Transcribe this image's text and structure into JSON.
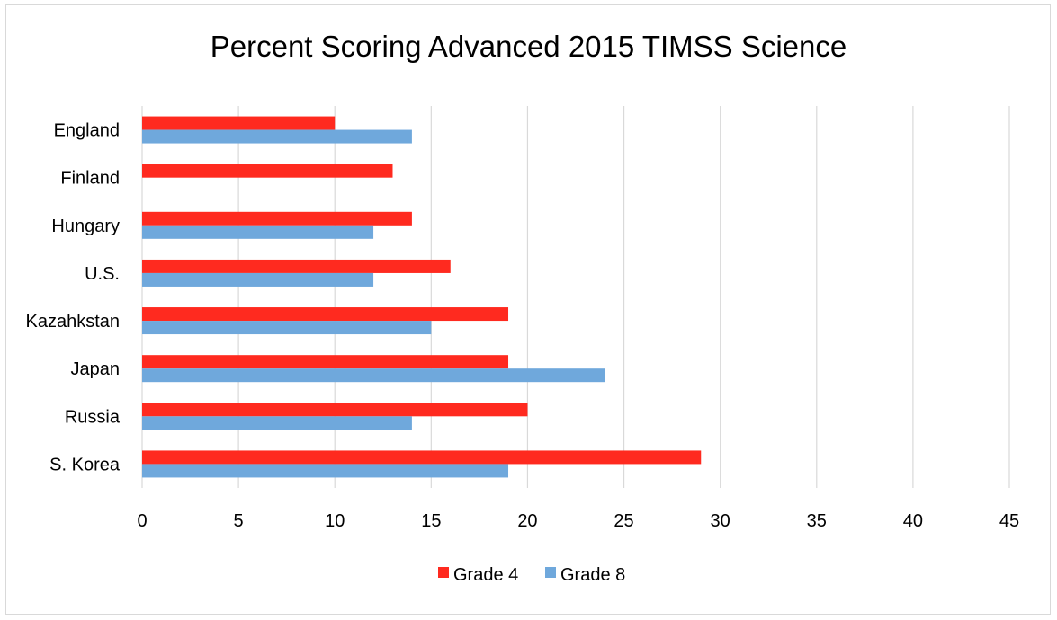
{
  "chart_data": {
    "type": "bar",
    "orientation": "horizontal",
    "title": "Percent Scoring Advanced 2015 TIMSS Science",
    "categories": [
      "England",
      "Finland",
      "Hungary",
      "U.S.",
      "Kazahkstan",
      "Japan",
      "Russia",
      "S. Korea"
    ],
    "series": [
      {
        "name": "Grade 4",
        "color": "#ff2a1f",
        "values": [
          10,
          13,
          14,
          16,
          19,
          19,
          20,
          29
        ]
      },
      {
        "name": "Grade 8",
        "color": "#6fa8dc",
        "values": [
          14,
          null,
          12,
          12,
          15,
          24,
          14,
          19
        ]
      }
    ],
    "xlim": [
      0,
      45
    ],
    "xticks": [
      "0",
      "5",
      "10",
      "15",
      "20",
      "25",
      "30",
      "35",
      "40",
      "45"
    ],
    "grid": true,
    "legend": "bottom"
  }
}
